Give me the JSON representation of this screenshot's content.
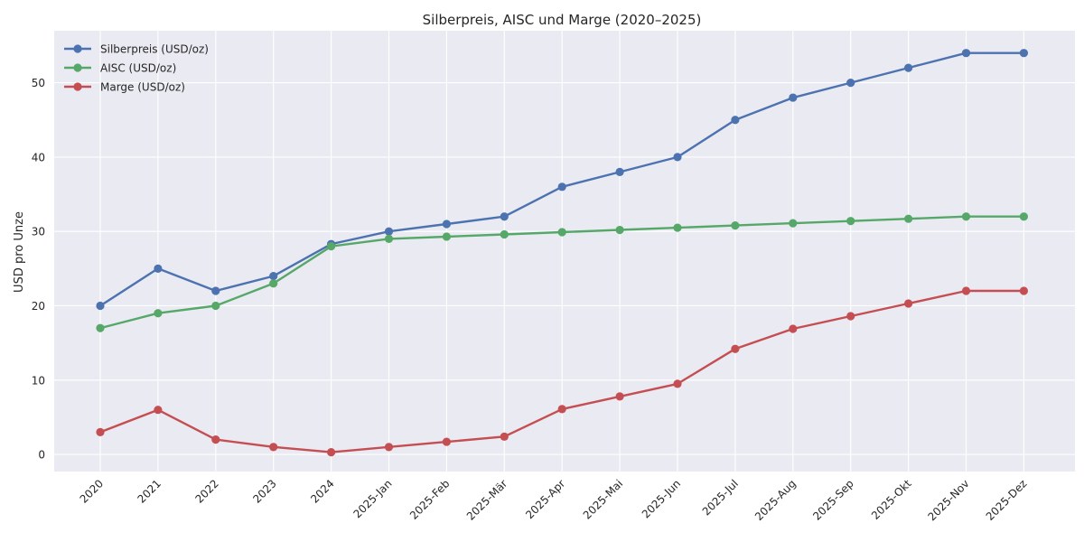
{
  "chart_data": {
    "type": "line",
    "title": "Silberpreis, AISC und Marge (2020–2025)",
    "xlabel": "",
    "ylabel": "USD pro Unze",
    "categories": [
      "2020",
      "2021",
      "2022",
      "2023",
      "2024",
      "2025-Jan",
      "2025-Feb",
      "2025-Mär",
      "2025-Apr",
      "2025-Mai",
      "2025-Jun",
      "2025-Jul",
      "2025-Aug",
      "2025-Sep",
      "2025-Okt",
      "2025-Nov",
      "2025-Dez"
    ],
    "ylim": [
      -2.3,
      57
    ],
    "yticks": [
      0,
      10,
      20,
      30,
      40,
      50
    ],
    "grid": true,
    "legend_position": "top-left",
    "background": "#eaeaf2",
    "series": [
      {
        "name": "Silberpreis (USD/oz)",
        "color": "#4c72b0",
        "values": [
          20,
          25,
          22,
          24,
          28.3,
          30,
          31,
          32,
          36,
          38,
          40,
          45,
          48,
          50,
          52,
          54,
          54
        ]
      },
      {
        "name": "AISC (USD/oz)",
        "color": "#55a868",
        "values": [
          17,
          19,
          20,
          23,
          28,
          29,
          29.3,
          29.6,
          29.9,
          30.2,
          30.5,
          30.8,
          31.1,
          31.4,
          31.7,
          32,
          32
        ]
      },
      {
        "name": "Marge (USD/oz)",
        "color": "#c44e52",
        "values": [
          3,
          6,
          2,
          1,
          0.3,
          1,
          1.7,
          2.4,
          6.1,
          7.8,
          9.5,
          14.2,
          16.9,
          18.6,
          20.3,
          22,
          22
        ]
      }
    ]
  }
}
